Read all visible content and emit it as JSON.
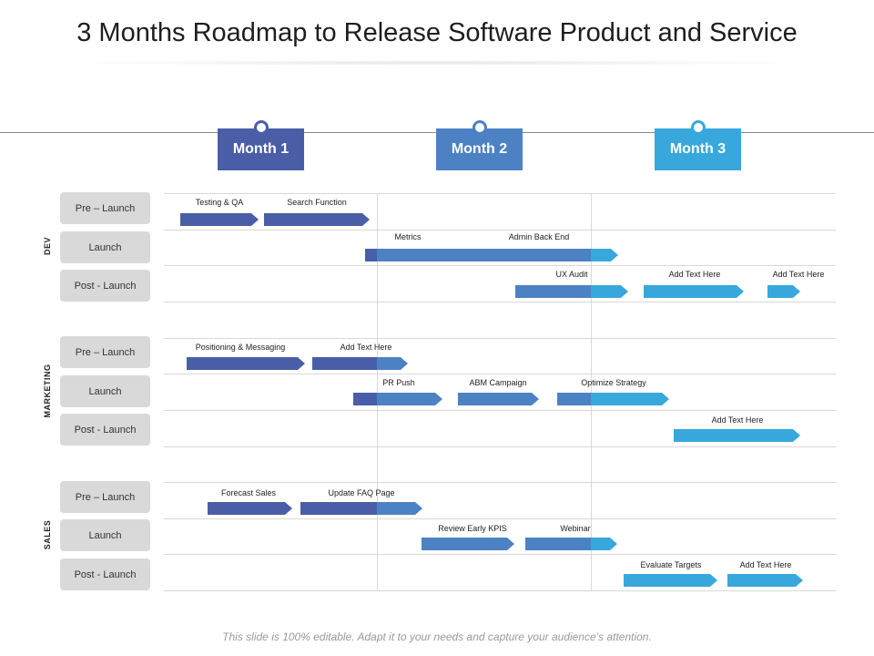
{
  "title": "3 Months Roadmap to Release Software Product and Service",
  "colors": {
    "month1": "#4a5ea8",
    "month2": "#4c82c4",
    "month3": "#38a8dc"
  },
  "months": [
    "Month 1",
    "Month 2",
    "Month 3"
  ],
  "groups": [
    "DEV",
    "MARKETING",
    "SALES"
  ],
  "phases": [
    "Pre – Launch",
    "Launch",
    "Post - Launch"
  ],
  "tasks": {
    "dev_pre_1": "Testing & QA",
    "dev_pre_2": "Search Function",
    "dev_launch_1": "Metrics",
    "dev_launch_2": "Admin Back End",
    "dev_post_1": "UX Audit",
    "dev_post_2": "Add Text Here",
    "dev_post_3": "Add Text Here",
    "mkt_pre_1": "Positioning & Messaging",
    "mkt_pre_2": "Add Text Here",
    "mkt_launch_1": "PR Push",
    "mkt_launch_2": "ABM Campaign",
    "mkt_launch_3": "Optimize Strategy",
    "mkt_post_1": "Add Text Here",
    "sales_pre_1": "Forecast Sales",
    "sales_pre_2": "Update FAQ Page",
    "sales_launch_1": "Review Early KPIS",
    "sales_launch_2": "Webinar",
    "sales_post_1": "Evaluate Targets",
    "sales_post_2": "Add Text Here"
  },
  "footer": "This slide is 100% editable. Adapt it to your needs and capture your audience’s attention."
}
